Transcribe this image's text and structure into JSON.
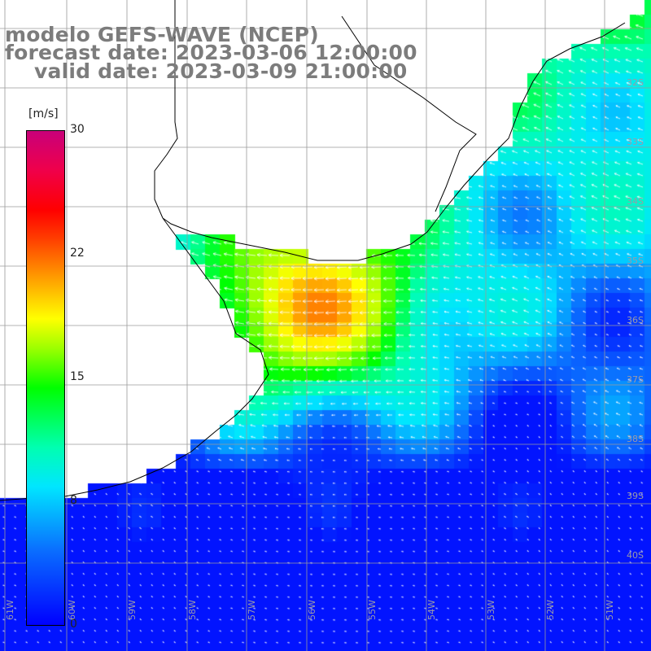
{
  "title": {
    "line1": "modelo GEFS-WAVE (NCEP)",
    "line2": "forecast date: 2023-03-06 12:00:00",
    "line3": "valid date: 2023-03-09 21:00:00"
  },
  "colorbar": {
    "unit": "[m/s]",
    "ticks": [
      "30",
      "22",
      "15",
      "8",
      "0"
    ],
    "min": 0,
    "max": 30,
    "colors": [
      "#0000ff",
      "#0a6dff",
      "#00e6ff",
      "#00ffb0",
      "#00ff00",
      "#9cff00",
      "#ffff00",
      "#ffa000",
      "#ff4000",
      "#ff0000",
      "#f0004a",
      "#c8007a"
    ]
  },
  "map": {
    "lat_labels": [
      "32S",
      "33S",
      "34S",
      "35S",
      "36S",
      "37S",
      "38S",
      "39S",
      "40S"
    ],
    "lon_labels": [
      "61W",
      "60W",
      "59W",
      "58W",
      "57W",
      "56W",
      "55W",
      "54W",
      "53W",
      "52W",
      "51W"
    ],
    "land_color": "#ffffff",
    "grid_color": "#9a9a9a",
    "arrow_color": "#ffffff",
    "field_description_colors": {
      "calm": "#0000ff",
      "moderate": "#00e6ff",
      "strong": "#00ff00"
    }
  }
}
